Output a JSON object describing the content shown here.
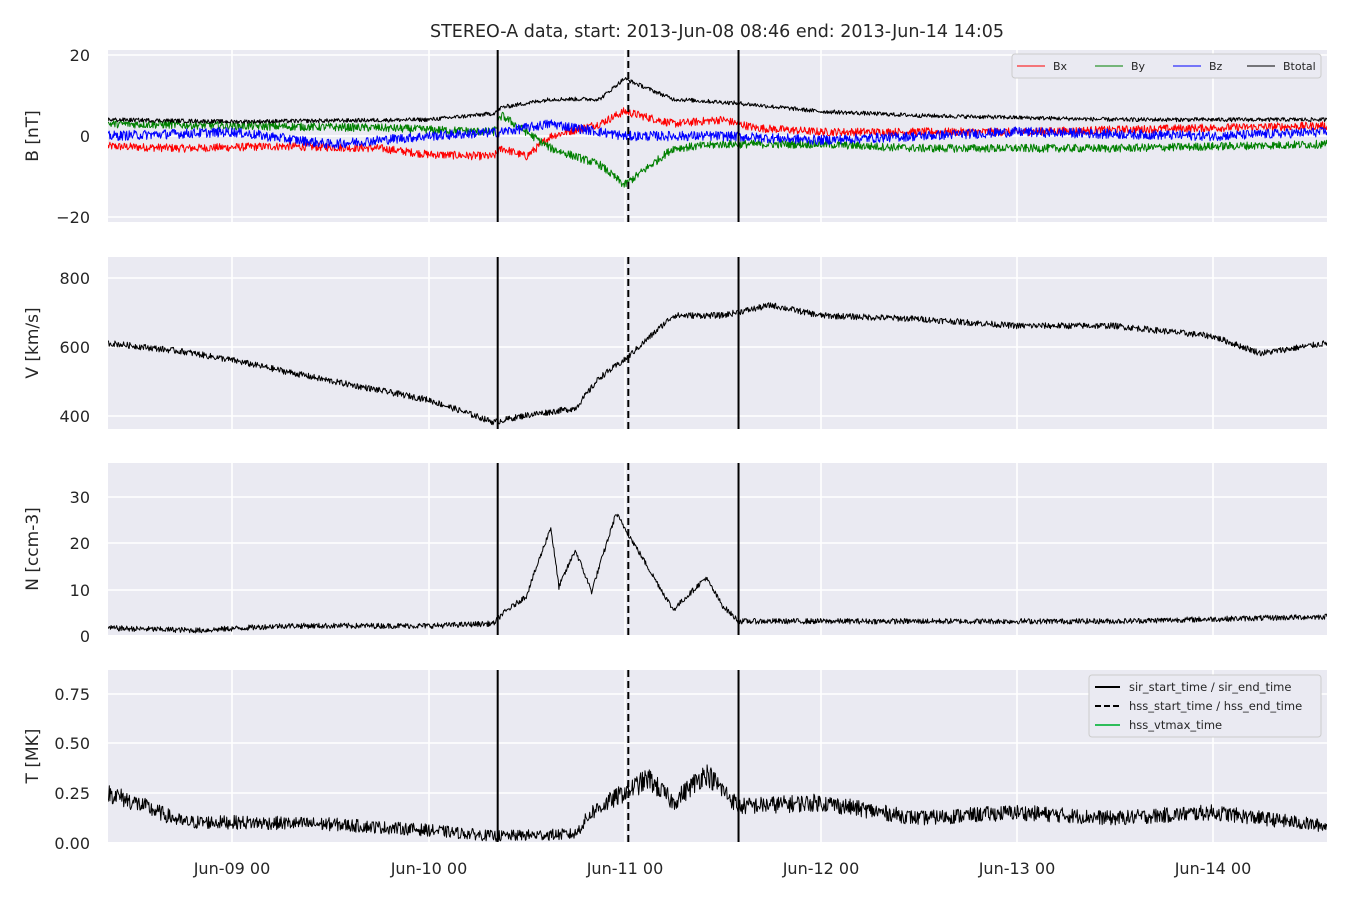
{
  "chart_data": {
    "type": "line",
    "title": "STEREO-A data, start: 2013-Jun-08 08:46  end: 2013-Jun-14 14:05",
    "x_range": [
      "2013-06-08T08:46",
      "2013-06-14T14:05"
    ],
    "x_ticks": [
      "Jun-09 00",
      "Jun-10 00",
      "Jun-11 00",
      "Jun-12 00",
      "Jun-13 00",
      "Jun-14 00"
    ],
    "grid": true,
    "event_lines": {
      "sir_start_time": "2013-06-10T08:30",
      "sir_end_time": "2013-06-11T14:00",
      "hss_start_time": "2013-06-11T00:30",
      "hss_end_time": "2013-06-11T00:30"
    },
    "legend_events": [
      "sir_start_time / sir_end_time",
      "hss_start_time / hss_end_time",
      "hss_vtmax_time"
    ],
    "panels": [
      {
        "ylabel": "B [nT]",
        "ylim": [
          -21,
          21
        ],
        "yticks": [
          "20",
          "0",
          "−20"
        ],
        "legend_position": "top-right",
        "series": [
          {
            "name": "Bx",
            "color": "#ff0000",
            "points": [
              [
                "2013-06-08T08:46",
                -2.5
              ],
              [
                "2013-06-08T18:00",
                -3
              ],
              [
                "2013-06-09T06:00",
                -2.5
              ],
              [
                "2013-06-09T18:00",
                -3
              ],
              [
                "2013-06-10T00:00",
                -4.5
              ],
              [
                "2013-06-10T08:00",
                -5
              ],
              [
                "2013-06-10T09:00",
                -3
              ],
              [
                "2013-06-10T12:00",
                -5
              ],
              [
                "2013-06-10T15:00",
                0
              ],
              [
                "2013-06-10T21:00",
                3
              ],
              [
                "2013-06-11T00:00",
                6
              ],
              [
                "2013-06-11T06:00",
                3
              ],
              [
                "2013-06-11T12:00",
                4
              ],
              [
                "2013-06-11T16:00",
                2
              ],
              [
                "2013-06-12T00:00",
                1
              ],
              [
                "2013-06-13T00:00",
                1
              ],
              [
                "2013-06-14T00:00",
                2
              ],
              [
                "2013-06-14T14:05",
                2.5
              ]
            ]
          },
          {
            "name": "By",
            "color": "#008000",
            "points": [
              [
                "2013-06-08T08:46",
                3
              ],
              [
                "2013-06-09T00:00",
                2.5
              ],
              [
                "2013-06-09T18:00",
                2
              ],
              [
                "2013-06-10T08:00",
                1
              ],
              [
                "2013-06-10T09:00",
                5
              ],
              [
                "2013-06-10T15:00",
                -3
              ],
              [
                "2013-06-10T21:00",
                -7
              ],
              [
                "2013-06-11T00:00",
                -12
              ],
              [
                "2013-06-11T06:00",
                -3
              ],
              [
                "2013-06-11T12:00",
                -2
              ],
              [
                "2013-06-12T00:00",
                -2
              ],
              [
                "2013-06-12T12:00",
                -3
              ],
              [
                "2013-06-13T12:00",
                -3
              ],
              [
                "2013-06-14T14:05",
                -2
              ]
            ]
          },
          {
            "name": "Bz",
            "color": "#0000ff",
            "points": [
              [
                "2013-06-08T08:46",
                0
              ],
              [
                "2013-06-09T00:00",
                1
              ],
              [
                "2013-06-09T12:00",
                -2
              ],
              [
                "2013-06-10T00:00",
                0
              ],
              [
                "2013-06-10T09:00",
                1
              ],
              [
                "2013-06-10T15:00",
                3
              ],
              [
                "2013-06-11T00:00",
                0
              ],
              [
                "2013-06-11T12:00",
                0
              ],
              [
                "2013-06-12T00:00",
                -1
              ],
              [
                "2013-06-13T00:00",
                1
              ],
              [
                "2013-06-14T00:00",
                0
              ],
              [
                "2013-06-14T14:05",
                1
              ]
            ]
          },
          {
            "name": "Btotal",
            "color": "#000000",
            "points": [
              [
                "2013-06-08T08:46",
                4
              ],
              [
                "2013-06-09T00:00",
                3.5
              ],
              [
                "2013-06-10T00:00",
                4
              ],
              [
                "2013-06-10T08:00",
                5.5
              ],
              [
                "2013-06-10T09:00",
                7
              ],
              [
                "2013-06-10T15:00",
                9
              ],
              [
                "2013-06-10T21:00",
                9
              ],
              [
                "2013-06-11T00:00",
                14
              ],
              [
                "2013-06-11T06:00",
                9
              ],
              [
                "2013-06-11T14:00",
                8
              ],
              [
                "2013-06-12T00:00",
                6
              ],
              [
                "2013-06-12T12:00",
                5
              ],
              [
                "2013-06-13T12:00",
                4
              ],
              [
                "2013-06-14T14:05",
                4
              ]
            ]
          }
        ]
      },
      {
        "ylabel": "V [km/s]",
        "ylim": [
          360,
          860
        ],
        "yticks": [
          "800",
          "600",
          "400"
        ],
        "series": [
          {
            "name": "V",
            "color": "#000000",
            "points": [
              [
                "2013-06-08T08:46",
                610
              ],
              [
                "2013-06-08T18:00",
                585
              ],
              [
                "2013-06-09T00:00",
                560
              ],
              [
                "2013-06-09T12:00",
                500
              ],
              [
                "2013-06-10T00:00",
                445
              ],
              [
                "2013-06-10T08:00",
                380
              ],
              [
                "2013-06-10T12:00",
                400
              ],
              [
                "2013-06-10T18:00",
                420
              ],
              [
                "2013-06-10T21:00",
                510
              ],
              [
                "2013-06-11T00:00",
                560
              ],
              [
                "2013-06-11T06:00",
                690
              ],
              [
                "2013-06-11T12:00",
                690
              ],
              [
                "2013-06-11T18:00",
                720
              ],
              [
                "2013-06-12T00:00",
                690
              ],
              [
                "2013-06-12T12:00",
                680
              ],
              [
                "2013-06-13T00:00",
                660
              ],
              [
                "2013-06-13T12:00",
                660
              ],
              [
                "2013-06-14T00:00",
                630
              ],
              [
                "2013-06-14T06:00",
                580
              ],
              [
                "2013-06-14T14:05",
                610
              ]
            ]
          }
        ]
      },
      {
        "ylabel": "N [ccm-3]",
        "ylim": [
          -0.5,
          37
        ],
        "yticks": [
          "30",
          "20",
          "10",
          "0"
        ],
        "series": [
          {
            "name": "N",
            "color": "#000000",
            "points": [
              [
                "2013-06-08T08:46",
                1
              ],
              [
                "2013-06-08T20:00",
                0.5
              ],
              [
                "2013-06-09T06:00",
                1.5
              ],
              [
                "2013-06-10T00:00",
                1.5
              ],
              [
                "2013-06-10T08:00",
                2
              ],
              [
                "2013-06-10T09:00",
                4
              ],
              [
                "2013-06-10T12:00",
                8
              ],
              [
                "2013-06-10T15:00",
                23
              ],
              [
                "2013-06-10T16:00",
                10
              ],
              [
                "2013-06-10T18:00",
                18
              ],
              [
                "2013-06-10T20:00",
                9
              ],
              [
                "2013-06-10T23:00",
                26
              ],
              [
                "2013-06-11T02:00",
                17
              ],
              [
                "2013-06-11T04:00",
                11
              ],
              [
                "2013-06-11T06:00",
                5
              ],
              [
                "2013-06-11T10:00",
                12
              ],
              [
                "2013-06-11T12:00",
                6
              ],
              [
                "2013-06-11T14:00",
                2.5
              ],
              [
                "2013-06-12T12:00",
                2.5
              ],
              [
                "2013-06-13T12:00",
                2.5
              ],
              [
                "2013-06-14T14:05",
                3.5
              ]
            ]
          }
        ]
      },
      {
        "ylabel": "T [MK]",
        "ylim": [
          0,
          0.87
        ],
        "yticks": [
          "0.75",
          "0.50",
          "0.25",
          "0.00"
        ],
        "series": [
          {
            "name": "T",
            "color": "#000000",
            "points": [
              [
                "2013-06-08T08:46",
                0.25
              ],
              [
                "2013-06-08T12:00",
                0.2
              ],
              [
                "2013-06-08T18:00",
                0.1
              ],
              [
                "2013-06-09T00:00",
                0.1
              ],
              [
                "2013-06-09T12:00",
                0.09
              ],
              [
                "2013-06-10T00:00",
                0.06
              ],
              [
                "2013-06-10T08:00",
                0.03
              ],
              [
                "2013-06-10T18:00",
                0.04
              ],
              [
                "2013-06-10T20:00",
                0.15
              ],
              [
                "2013-06-11T00:00",
                0.25
              ],
              [
                "2013-06-11T03:00",
                0.32
              ],
              [
                "2013-06-11T06:00",
                0.2
              ],
              [
                "2013-06-11T10:00",
                0.35
              ],
              [
                "2013-06-11T14:00",
                0.18
              ],
              [
                "2013-06-12T00:00",
                0.2
              ],
              [
                "2013-06-12T12:00",
                0.12
              ],
              [
                "2013-06-13T00:00",
                0.15
              ],
              [
                "2013-06-13T12:00",
                0.12
              ],
              [
                "2013-06-14T00:00",
                0.15
              ],
              [
                "2013-06-14T14:05",
                0.08
              ]
            ]
          }
        ]
      }
    ]
  }
}
